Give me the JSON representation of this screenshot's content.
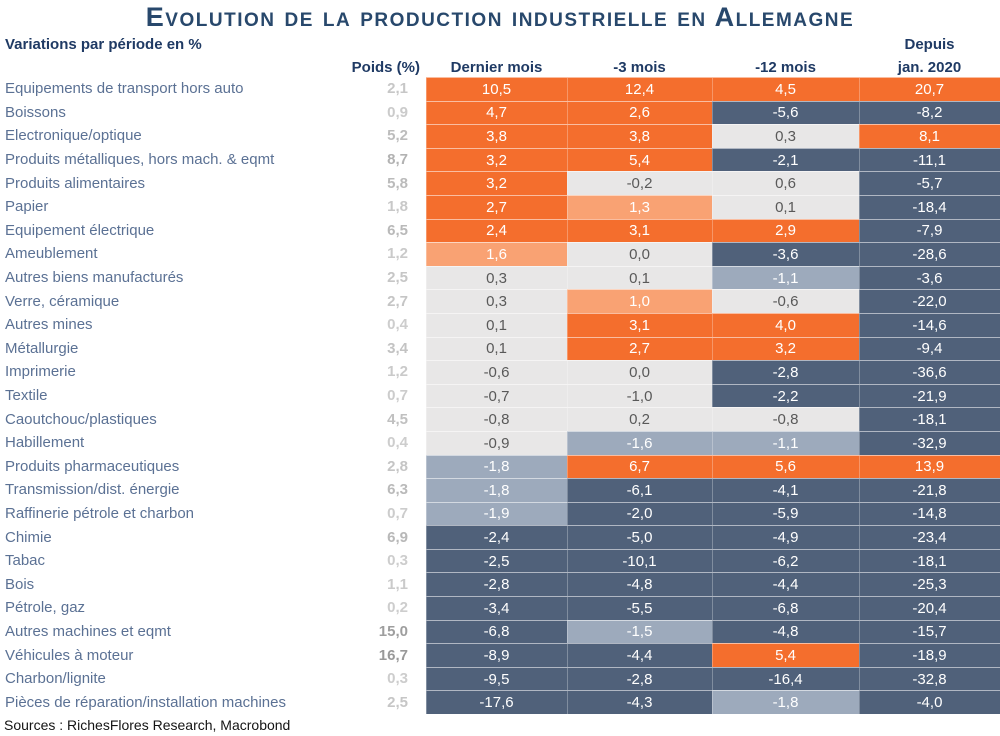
{
  "title": "Evolution de la production industrielle en Allemagne",
  "subtitle": "Variations par période en %",
  "header": {
    "poids": "Poids (%)",
    "cols": [
      "Dernier mois",
      "-3 mois",
      "-12 mois"
    ],
    "depuis_line1": "Depuis",
    "depuis_line2": "jan. 2020"
  },
  "sources": "Sources : RichesFlores Research, Macrobond",
  "palette": {
    "pos2": {
      "bg": "#F46E2D",
      "fg": "#FFFFFF"
    },
    "pos1": {
      "bg": "#F9A273",
      "fg": "#FFFFFF"
    },
    "neu": {
      "bg": "#E8E7E7",
      "fg": "#595959"
    },
    "neg1": {
      "bg": "#9DAABC",
      "fg": "#FFFFFF"
    },
    "neg2": {
      "bg": "#50617A",
      "fg": "#FFFFFF"
    }
  },
  "colors": {
    "title": "#28486C",
    "header_text": "#1F3A64",
    "row_label": "#5B7194",
    "accent_orange": "#F46E2D"
  },
  "chart_data": {
    "type": "heatmap",
    "title": "Evolution de la production industrielle en Allemagne",
    "subtitle": "Variations par période en %",
    "columns": [
      "Poids (%)",
      "Dernier mois",
      "-3 mois",
      "-12 mois",
      "Depuis jan. 2020"
    ],
    "rows": [
      "Equipements de transport hors auto",
      "Boissons",
      "Electronique/optique",
      "Produits métalliques, hors mach. & eqmt",
      "Produits alimentaires",
      "Papier",
      "Equipement électrique",
      "Ameublement",
      "Autres biens manufacturés",
      "Verre, céramique",
      "Autres mines",
      "Métallurgie",
      "Imprimerie",
      "Textile",
      "Caoutchouc/plastiques",
      "Habillement",
      "Produits pharmaceutiques",
      "Transmission/dist. énergie",
      "Raffinerie pétrole et charbon",
      "Chimie",
      "Tabac",
      "Bois",
      "Pétrole, gaz",
      "Autres machines et eqmt",
      "Véhicules à moteur",
      "Charbon/lignite",
      "Pièces de réparation/installation machines"
    ],
    "weights": [
      2.1,
      0.9,
      5.2,
      8.7,
      5.8,
      1.8,
      6.5,
      1.2,
      2.5,
      2.7,
      0.4,
      3.4,
      1.2,
      0.7,
      4.5,
      0.4,
      2.8,
      6.3,
      0.7,
      6.9,
      0.3,
      1.1,
      0.2,
      15.0,
      16.7,
      0.3,
      2.5
    ],
    "values": [
      [
        10.5,
        12.4,
        4.5,
        20.7
      ],
      [
        4.7,
        2.6,
        -5.6,
        -8.2
      ],
      [
        3.8,
        3.8,
        0.3,
        8.1
      ],
      [
        3.2,
        5.4,
        -2.1,
        -11.1
      ],
      [
        3.2,
        -0.2,
        0.6,
        -5.7
      ],
      [
        2.7,
        1.3,
        0.1,
        -18.4
      ],
      [
        2.4,
        3.1,
        2.9,
        -7.9
      ],
      [
        1.6,
        0.0,
        -3.6,
        -28.6
      ],
      [
        0.3,
        0.1,
        -1.1,
        -3.6
      ],
      [
        0.3,
        1.0,
        -0.6,
        -22.0
      ],
      [
        0.1,
        3.1,
        4.0,
        -14.6
      ],
      [
        0.1,
        2.7,
        3.2,
        -9.4
      ],
      [
        -0.6,
        0.0,
        -2.8,
        -36.6
      ],
      [
        -0.7,
        -1.0,
        -2.2,
        -21.9
      ],
      [
        -0.8,
        0.2,
        -0.8,
        -18.1
      ],
      [
        -0.9,
        -1.6,
        -1.1,
        -32.9
      ],
      [
        -1.8,
        6.7,
        5.6,
        13.9
      ],
      [
        -1.8,
        -6.1,
        -4.1,
        -21.8
      ],
      [
        -1.9,
        -2.0,
        -5.9,
        -14.8
      ],
      [
        -2.4,
        -5.0,
        -4.9,
        -23.4
      ],
      [
        -2.5,
        -10.1,
        -6.2,
        -18.1
      ],
      [
        -2.8,
        -4.8,
        -4.4,
        -25.3
      ],
      [
        -3.4,
        -5.5,
        -6.8,
        -20.4
      ],
      [
        -6.8,
        -1.5,
        -4.8,
        -15.7
      ],
      [
        -8.9,
        -4.4,
        5.4,
        -18.9
      ],
      [
        -9.5,
        -2.8,
        -16.4,
        -32.8
      ],
      [
        -17.6,
        -4.3,
        -1.8,
        -4.0
      ]
    ],
    "cell_colors": [
      [
        "pos2",
        "pos2",
        "pos2",
        "pos2"
      ],
      [
        "pos2",
        "pos2",
        "neg2",
        "neg2"
      ],
      [
        "pos2",
        "pos2",
        "neu",
        "pos2"
      ],
      [
        "pos2",
        "pos2",
        "neg2",
        "neg2"
      ],
      [
        "pos2",
        "neu",
        "neu",
        "neg2"
      ],
      [
        "pos2",
        "pos1",
        "neu",
        "neg2"
      ],
      [
        "pos2",
        "pos2",
        "pos2",
        "neg2"
      ],
      [
        "pos1",
        "neu",
        "neg2",
        "neg2"
      ],
      [
        "neu",
        "neu",
        "neg1",
        "neg2"
      ],
      [
        "neu",
        "pos1",
        "neu",
        "neg2"
      ],
      [
        "neu",
        "pos2",
        "pos2",
        "neg2"
      ],
      [
        "neu",
        "pos2",
        "pos2",
        "neg2"
      ],
      [
        "neu",
        "neu",
        "neg2",
        "neg2"
      ],
      [
        "neu",
        "neu",
        "neg2",
        "neg2"
      ],
      [
        "neu",
        "neu",
        "neu",
        "neg2"
      ],
      [
        "neu",
        "neg1",
        "neg1",
        "neg2"
      ],
      [
        "neg1",
        "pos2",
        "pos2",
        "pos2"
      ],
      [
        "neg1",
        "neg2",
        "neg2",
        "neg2"
      ],
      [
        "neg1",
        "neg2",
        "neg2",
        "neg2"
      ],
      [
        "neg2",
        "neg2",
        "neg2",
        "neg2"
      ],
      [
        "neg2",
        "neg2",
        "neg2",
        "neg2"
      ],
      [
        "neg2",
        "neg2",
        "neg2",
        "neg2"
      ],
      [
        "neg2",
        "neg2",
        "neg2",
        "neg2"
      ],
      [
        "neg2",
        "neg1",
        "neg2",
        "neg2"
      ],
      [
        "neg2",
        "neg2",
        "pos2",
        "neg2"
      ],
      [
        "neg2",
        "neg2",
        "neg2",
        "neg2"
      ],
      [
        "neg2",
        "neg2",
        "neg1",
        "neg2"
      ]
    ],
    "layout": {
      "decimal_separator": ",",
      "negative_color_scale": "dark blue",
      "positive_color_scale": "orange",
      "grid": false,
      "legend": false
    }
  }
}
